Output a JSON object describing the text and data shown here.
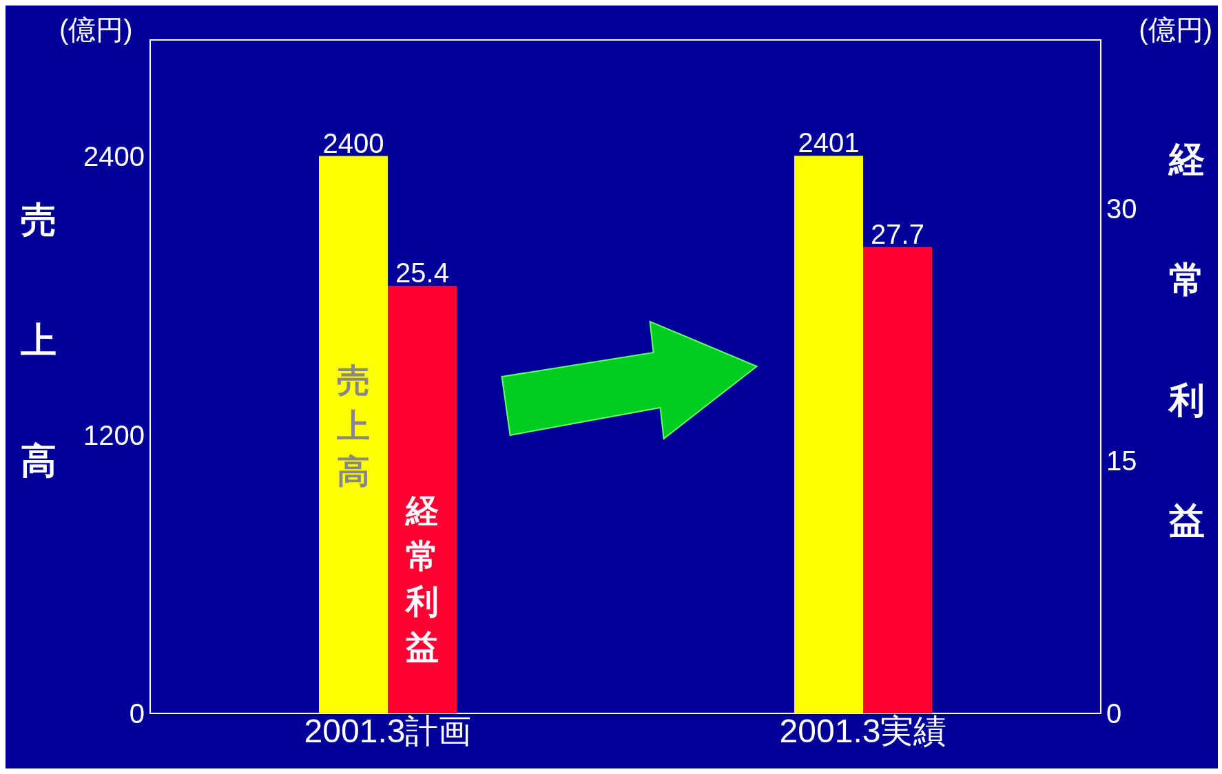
{
  "chart_data": {
    "type": "bar",
    "categories": [
      "2001.3計画",
      "2001.3実績"
    ],
    "series": [
      {
        "name": "売上高",
        "color": "#ffff00",
        "values": [
          2400,
          2401
        ]
      },
      {
        "name": "経常利益",
        "color": "#ff0033",
        "values": [
          25.4,
          27.7
        ],
        "axis": "y2"
      }
    ],
    "ylabel": "売上高",
    "y2label": "経常利益",
    "ylim": [
      0,
      2900
    ],
    "yticks": [
      0,
      1200,
      2400
    ],
    "y2lim": [
      0,
      40
    ],
    "y2ticks": [
      0,
      15,
      30
    ],
    "annotations": [
      "(億円)",
      "(億円)"
    ],
    "data_labels": true
  }
}
